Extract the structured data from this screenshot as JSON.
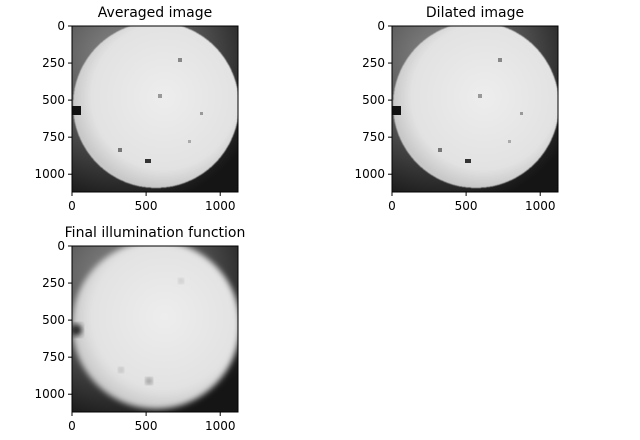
{
  "figure": {
    "background": "#ffffff",
    "colormap": "gray"
  },
  "chart_data": [
    {
      "type": "image",
      "title": "Averaged image",
      "image": "pixelated grayscale microscopy field: bright circular well on dark surround, black notch on left edge, small dark specks",
      "extent": [
        0,
        1120
      ],
      "pixelation": "blocky",
      "xticks": [
        0,
        500,
        1000
      ],
      "yticks": [
        0,
        250,
        500,
        750,
        1000
      ],
      "xlabel": "",
      "ylabel": ""
    },
    {
      "type": "image",
      "title": "Dilated image",
      "image": "pixelated grayscale microscopy field: bright circular well on dark surround, black notch on left edge, small dark specks",
      "extent": [
        0,
        1120
      ],
      "pixelation": "blocky",
      "xticks": [
        0,
        500,
        1000
      ],
      "yticks": [
        0,
        250,
        500,
        750,
        1000
      ],
      "xlabel": "",
      "ylabel": ""
    },
    {
      "type": "image",
      "title": "Final illumination function",
      "image": "smoothed grayscale illumination map: bright blurred circular region on dark surround, dark blur at left edge",
      "extent": [
        0,
        1120
      ],
      "pixelation": "smooth",
      "xticks": [
        0,
        500,
        1000
      ],
      "yticks": [
        0,
        250,
        500,
        750,
        1000
      ],
      "xlabel": "",
      "ylabel": ""
    }
  ]
}
